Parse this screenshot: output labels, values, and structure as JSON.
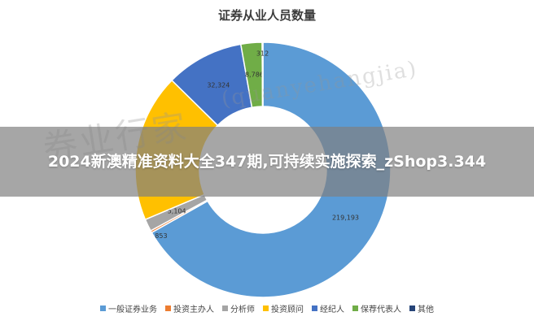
{
  "chart_data": {
    "type": "pie",
    "title": "证券从业人员数量",
    "categories": [
      "一般证券业务",
      "投资主办人",
      "分析师",
      "投资顾问",
      "经纪人",
      "保荐代表人",
      "其他"
    ],
    "values": [
      219193,
      853,
      5104,
      61500,
      32324,
      8786,
      312
    ],
    "data_labels": [
      "219,193",
      "853",
      "5,104",
      "",
      "32,324",
      "8,786",
      "312"
    ],
    "colors": [
      "#5b9bd5",
      "#ed7d31",
      "#a5a5a5",
      "#ffc000",
      "#4472c4",
      "#70ad47",
      "#264478"
    ],
    "legend_position": "bottom"
  },
  "banner": {
    "text": "2024新澳精准资料大全347期,可持续实施探索_zShop3.344"
  },
  "watermark": {
    "main": "券业行家",
    "sub": "(quanyehangjia)"
  }
}
